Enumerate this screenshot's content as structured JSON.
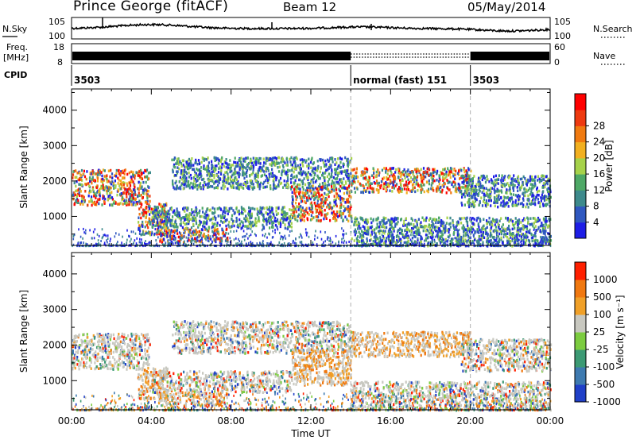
{
  "header": {
    "title": "Prince George (fitACF)",
    "beam": "Beam 12",
    "date": "05/May/2014"
  },
  "chart_data": {
    "type": "heatmap",
    "x_axis": {
      "label": "Time UT",
      "range": [
        "00:00",
        "24:00"
      ],
      "ticks": [
        "00:00",
        "04:00",
        "08:00",
        "12:00",
        "16:00",
        "20:00",
        "00:00"
      ]
    },
    "y_axis": {
      "label": "Slant Range [km]",
      "range_km": [
        180,
        4600
      ],
      "ticks": [
        1000,
        2000,
        3000,
        4000
      ]
    },
    "noise_panel": {
      "left_label": "N.Sky",
      "right_label": "N.Search",
      "left_ticks": [
        "10^5",
        "10^0"
      ],
      "right_ticks": [
        "10^5",
        "10^0"
      ]
    },
    "freq_panel": {
      "left_label_top": "Freq.",
      "left_label_bottom": "[MHz]",
      "right_label": "Nave",
      "left_ticks": [
        18,
        8
      ],
      "right_ticks": [
        60,
        0
      ]
    },
    "cpid": {
      "label": "CPID",
      "segments": [
        {
          "start_hour": 0,
          "end_hour": 14,
          "text": "3503"
        },
        {
          "start_hour": 14,
          "end_hour": 20,
          "text": "normal (fast) 151"
        },
        {
          "start_hour": 20,
          "end_hour": 24,
          "text": "3503"
        }
      ]
    },
    "panels": [
      {
        "name": "power",
        "colorbar_label": "Power [dB]",
        "colorbar_ticks": [
          "4",
          "8",
          "12",
          "16",
          "20",
          "24",
          "28"
        ],
        "colors": [
          "#1e1ee6",
          "#2f58c0",
          "#3d8a8c",
          "#4ea866",
          "#a6d24a",
          "#f2b020",
          "#f07a10",
          "#ee3a10",
          "#ff0000"
        ]
      },
      {
        "name": "velocity",
        "colorbar_label": "Velocity [m s⁻¹]",
        "colorbar_ticks": [
          "1000",
          "500",
          "100",
          "25",
          "-25",
          "-100",
          "-500",
          "-1000"
        ],
        "colors": [
          "#2040c8",
          "#3e7ab0",
          "#3c9a74",
          "#7ccc40",
          "#c8c8c0",
          "#f0a028",
          "#f07810",
          "#ff2000"
        ]
      }
    ],
    "echo_regions": [
      {
        "t_start": 0.0,
        "t_end": 3.9,
        "r_start": 1350,
        "r_end": 2350
      },
      {
        "t_start": 3.3,
        "t_end": 4.8,
        "r_start": 500,
        "r_end": 1400
      },
      {
        "t_start": 4.3,
        "t_end": 7.8,
        "r_start": 300,
        "r_end": 700
      },
      {
        "t_start": 4.0,
        "t_end": 11.0,
        "r_start": 700,
        "r_end": 1300
      },
      {
        "t_start": 5.0,
        "t_end": 14.0,
        "r_start": 1800,
        "r_end": 2700
      },
      {
        "t_start": 11.0,
        "t_end": 14.0,
        "r_start": 900,
        "r_end": 1900
      },
      {
        "t_start": 14.0,
        "t_end": 20.0,
        "r_start": 1700,
        "r_end": 2400
      },
      {
        "t_start": 14.0,
        "t_end": 24.0,
        "r_start": 200,
        "r_end": 1000
      },
      {
        "t_start": 19.5,
        "t_end": 24.0,
        "r_start": 1300,
        "r_end": 2200
      }
    ]
  }
}
